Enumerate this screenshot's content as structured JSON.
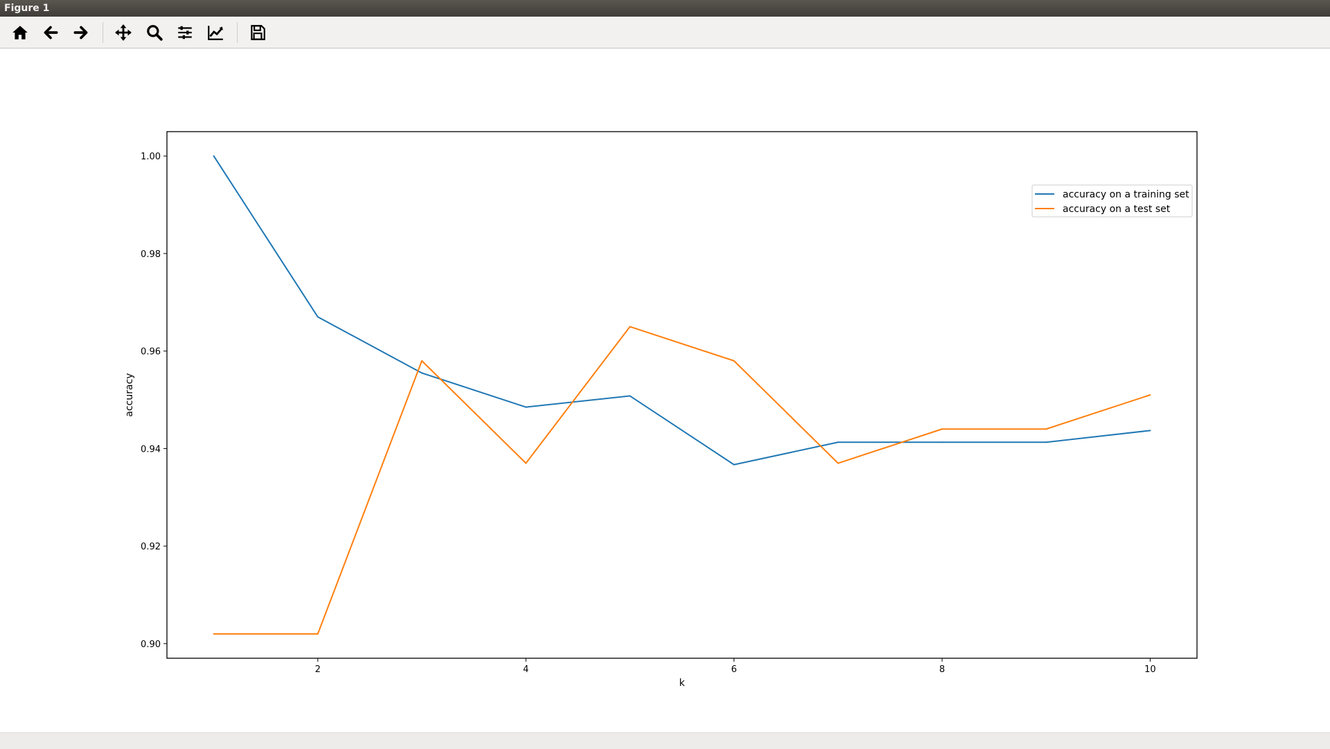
{
  "window": {
    "title": "Figure 1"
  },
  "toolbar": {
    "buttons": [
      {
        "name": "home-button",
        "icon": "home-icon"
      },
      {
        "name": "back-button",
        "icon": "arrow-left-icon"
      },
      {
        "name": "forward-button",
        "icon": "arrow-right-icon"
      },
      {
        "name": "pan-button",
        "icon": "move-icon"
      },
      {
        "name": "zoom-button",
        "icon": "magnifier-icon"
      },
      {
        "name": "subplots-button",
        "icon": "sliders-icon"
      },
      {
        "name": "edit-axis-button",
        "icon": "line-chart-icon"
      },
      {
        "name": "save-button",
        "icon": "floppy-disk-icon"
      }
    ]
  },
  "chart_data": {
    "type": "line",
    "title": "",
    "xlabel": "k",
    "ylabel": "accuracy",
    "xlim": [
      0.55,
      10.45
    ],
    "ylim": [
      0.897,
      1.005
    ],
    "xticks": [
      2,
      4,
      6,
      8,
      10
    ],
    "xtick_labels": [
      "2",
      "4",
      "6",
      "8",
      "10"
    ],
    "yticks": [
      0.9,
      0.92,
      0.94,
      0.96,
      0.98,
      1.0
    ],
    "ytick_labels": [
      "0.90",
      "0.92",
      "0.94",
      "0.96",
      "0.98",
      "1.00"
    ],
    "grid": false,
    "legend_position": "upper right",
    "x": [
      1,
      2,
      3,
      4,
      5,
      6,
      7,
      8,
      9,
      10
    ],
    "series": [
      {
        "name": "accuracy on a training set",
        "color": "#1f77b4",
        "values": [
          1.0,
          0.967,
          0.9555,
          0.9485,
          0.9508,
          0.9367,
          0.9413,
          0.9413,
          0.9413,
          0.9437
        ]
      },
      {
        "name": "accuracy on a test set",
        "color": "#ff7f0e",
        "values": [
          0.902,
          0.902,
          0.958,
          0.937,
          0.965,
          0.958,
          0.937,
          0.944,
          0.944,
          0.951
        ]
      }
    ]
  }
}
